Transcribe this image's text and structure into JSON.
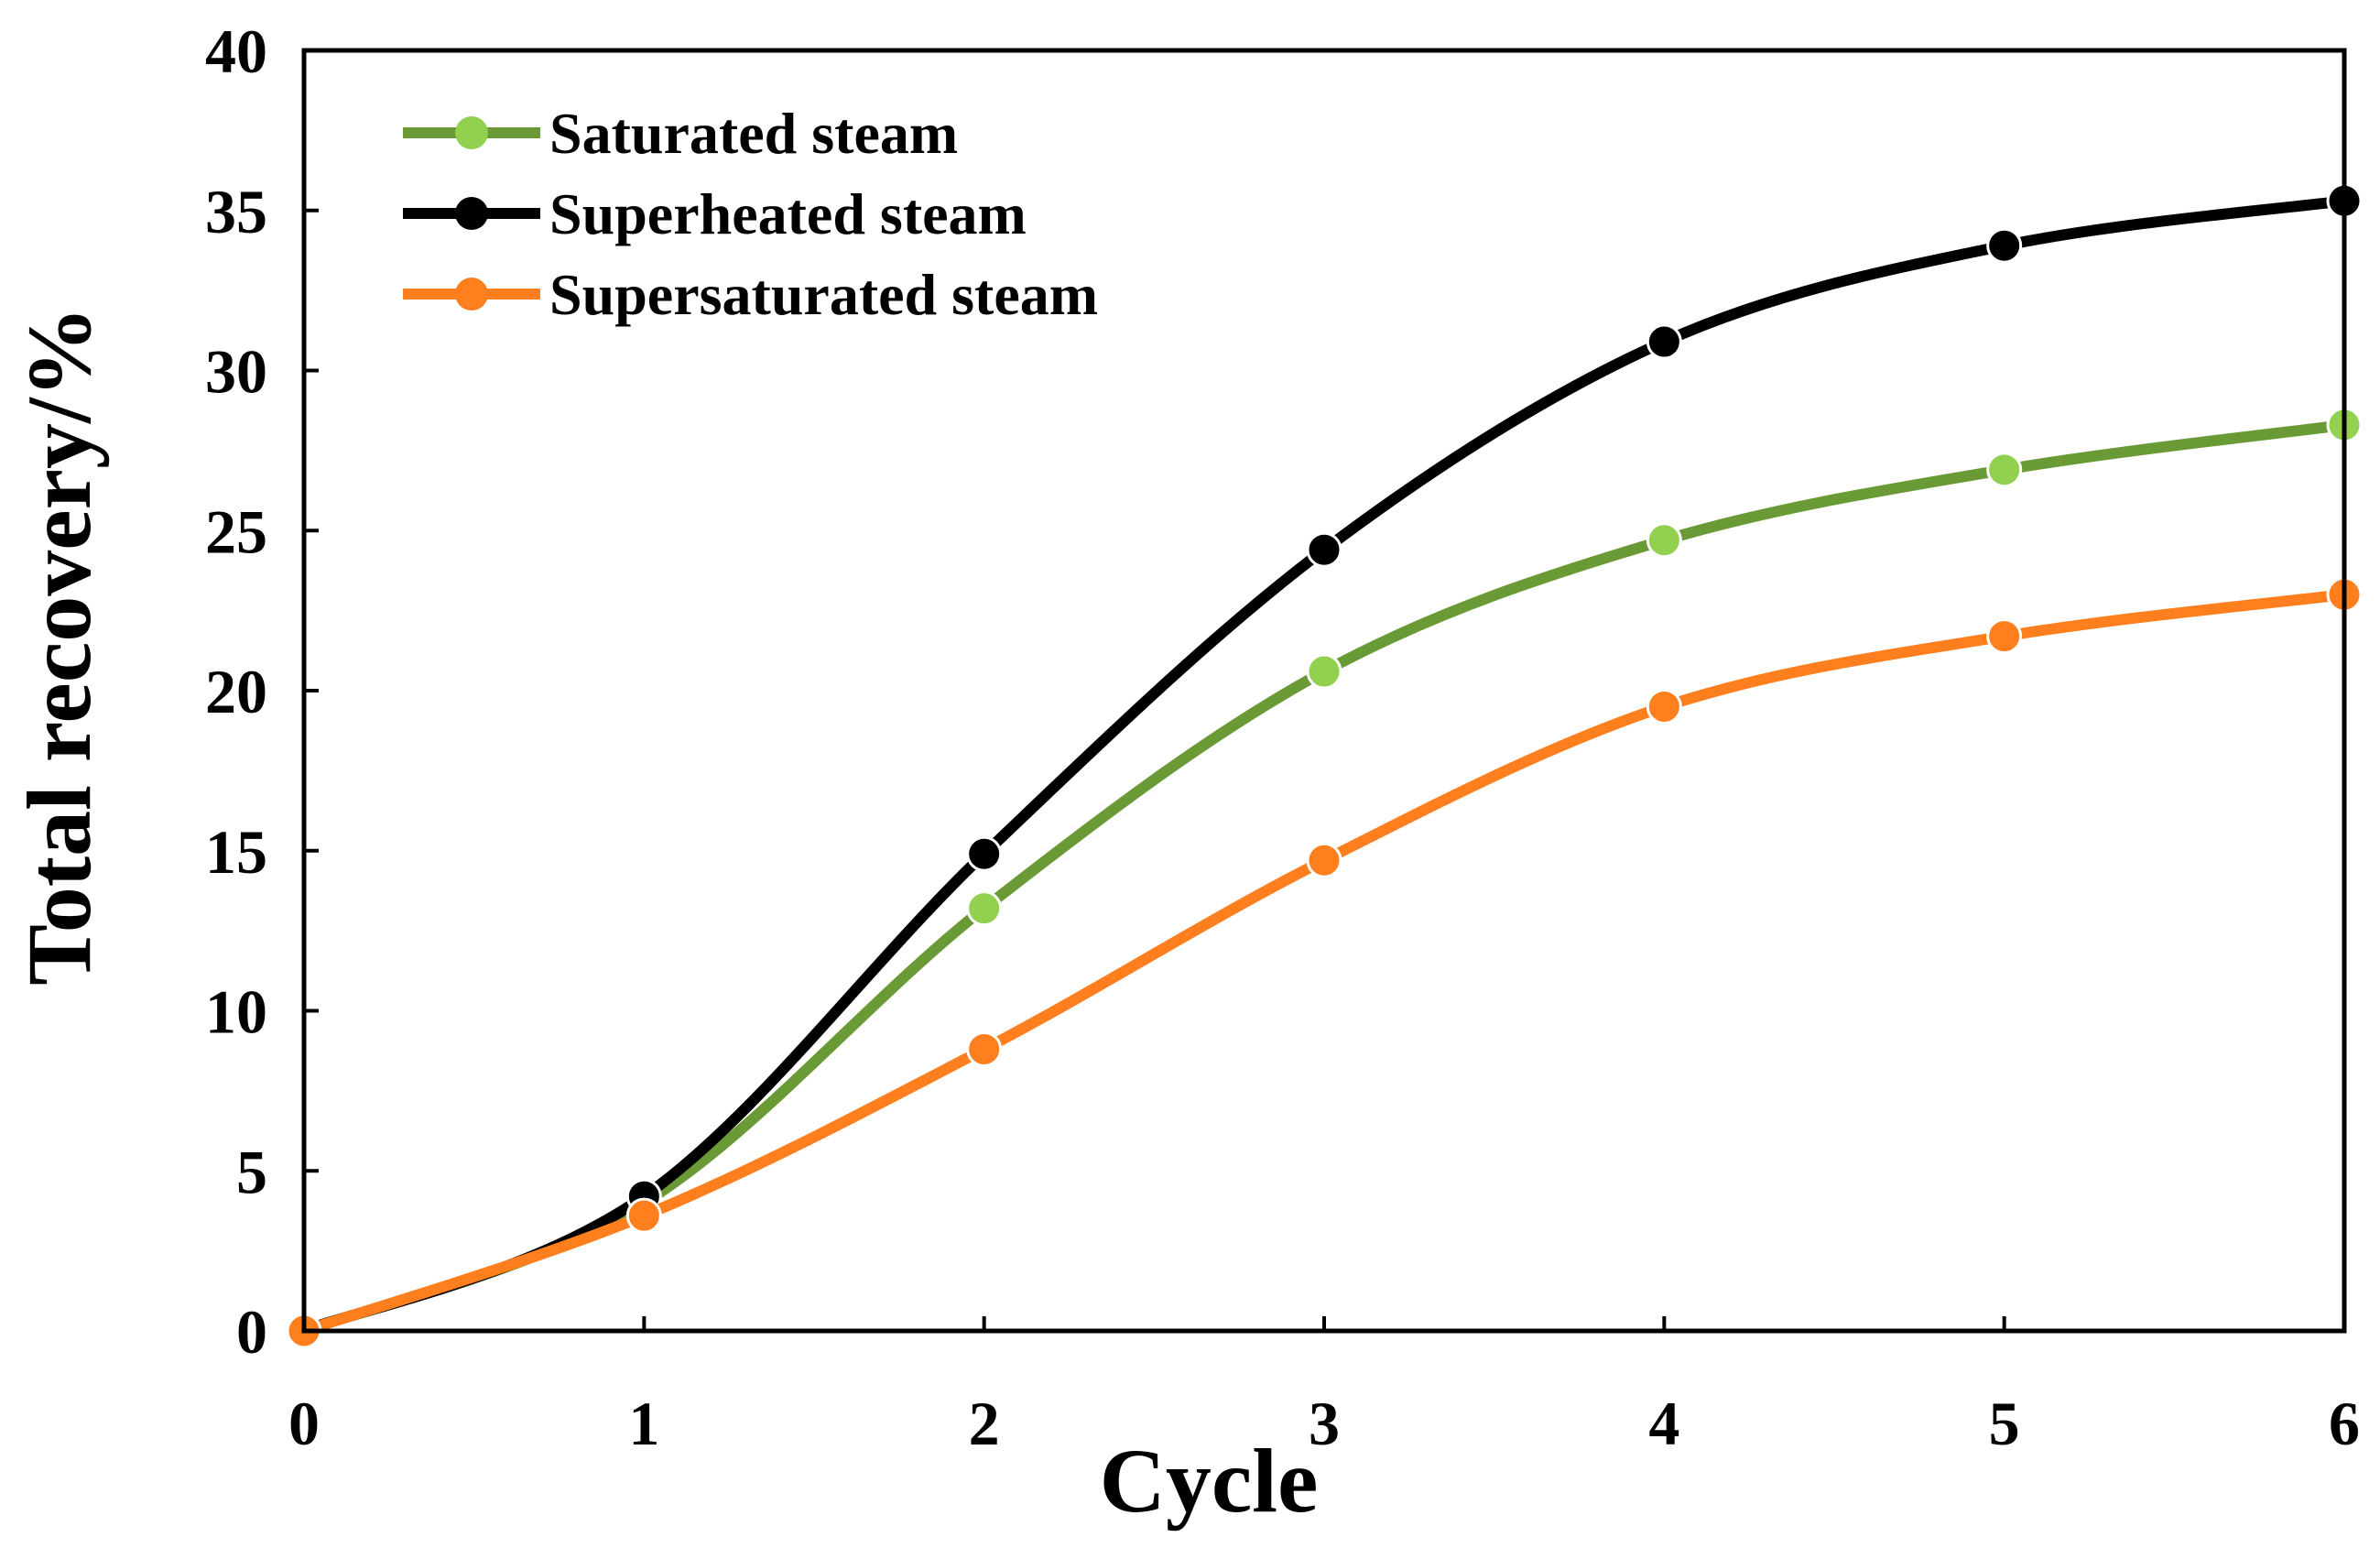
{
  "chart_data": {
    "type": "line",
    "smooth": true,
    "title": "",
    "xlabel": "Cycle",
    "ylabel": "Total recovery/%",
    "x": [
      0,
      1,
      2,
      3,
      4,
      5,
      6
    ],
    "xlim": [
      0,
      6
    ],
    "ylim": [
      0,
      40
    ],
    "xticks": [
      "0",
      "1",
      "2",
      "3",
      "4",
      "5",
      "6"
    ],
    "yticks": [
      "0",
      "5",
      "10",
      "15",
      "20",
      "25",
      "30",
      "35",
      "40"
    ],
    "grid": false,
    "legend": {
      "position": "top-left"
    },
    "series": [
      {
        "name": "Saturated steam",
        "color": "#6a9a35",
        "marker_color": "#92d050",
        "values": [
          0,
          4.0,
          13.2,
          20.6,
          24.7,
          26.9,
          28.3
        ]
      },
      {
        "name": "Superheated steam",
        "color": "#000000",
        "marker_color": "#000000",
        "values": [
          0,
          4.2,
          14.9,
          24.4,
          30.9,
          33.9,
          35.3
        ]
      },
      {
        "name": "Supersaturated steam",
        "color": "#ff7f1f",
        "marker_color": "#ff7f1f",
        "values": [
          0,
          3.6,
          8.8,
          14.7,
          19.5,
          21.7,
          23.0
        ]
      }
    ]
  }
}
